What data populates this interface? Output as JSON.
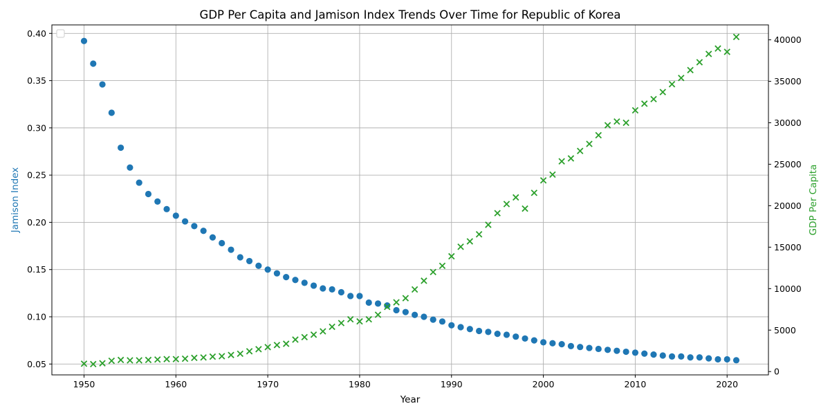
{
  "chart_data": {
    "type": "scatter",
    "title": "GDP Per Capita and Jamison Index Trends Over Time for Republic of Korea",
    "xlabel": "Year",
    "ylabel_left": "Jamison Index",
    "ylabel_right": "GDP Per Capita",
    "xlim": [
      1946.5,
      2024.5
    ],
    "ylim_left": [
      0.0385,
      0.409
    ],
    "ylim_right": [
      -400,
      41800
    ],
    "x_ticks": [
      1950,
      1960,
      1970,
      1980,
      1990,
      2000,
      2010,
      2020
    ],
    "y_left_ticks": [
      0.05,
      0.1,
      0.15,
      0.2,
      0.25,
      0.3,
      0.35,
      0.4
    ],
    "y_left_tick_labels": [
      "0.05",
      "0.10",
      "0.15",
      "0.20",
      "0.25",
      "0.30",
      "0.35",
      "0.40"
    ],
    "y_right_ticks": [
      0,
      5000,
      10000,
      15000,
      20000,
      25000,
      30000,
      35000,
      40000
    ],
    "grid": true,
    "legend": "top-left (empty)",
    "colors": {
      "jamison": "#1f77b4",
      "gdp": "#2ca02c"
    },
    "x": [
      1950,
      1951,
      1952,
      1953,
      1954,
      1955,
      1956,
      1957,
      1958,
      1959,
      1960,
      1961,
      1962,
      1963,
      1964,
      1965,
      1966,
      1967,
      1968,
      1969,
      1970,
      1971,
      1972,
      1973,
      1974,
      1975,
      1976,
      1977,
      1978,
      1979,
      1980,
      1981,
      1982,
      1983,
      1984,
      1985,
      1986,
      1987,
      1988,
      1989,
      1990,
      1991,
      1992,
      1993,
      1994,
      1995,
      1996,
      1997,
      1998,
      1999,
      2000,
      2001,
      2002,
      2003,
      2004,
      2005,
      2006,
      2007,
      2008,
      2009,
      2010,
      2011,
      2012,
      2013,
      2014,
      2015,
      2016,
      2017,
      2018,
      2019,
      2020,
      2021
    ],
    "series": [
      {
        "name": "Jamison Index",
        "axis": "left",
        "marker": "circle",
        "values": [
          0.392,
          0.368,
          0.346,
          0.316,
          0.279,
          0.258,
          0.242,
          0.23,
          0.222,
          0.214,
          0.207,
          0.201,
          0.196,
          0.191,
          0.184,
          0.178,
          0.171,
          0.163,
          0.159,
          0.154,
          0.15,
          0.146,
          0.142,
          0.139,
          0.136,
          0.133,
          0.13,
          0.129,
          0.126,
          0.122,
          0.122,
          0.115,
          0.114,
          0.112,
          0.107,
          0.105,
          0.102,
          0.1,
          0.097,
          0.095,
          0.091,
          0.089,
          0.087,
          0.085,
          0.084,
          0.082,
          0.081,
          0.079,
          0.077,
          0.075,
          0.073,
          0.072,
          0.071,
          0.069,
          0.068,
          0.067,
          0.066,
          0.065,
          0.064,
          0.063,
          0.062,
          0.061,
          0.06,
          0.059,
          0.058,
          0.058,
          0.057,
          0.057,
          0.056,
          0.055,
          0.055,
          0.054
        ]
      },
      {
        "name": "GDP Per Capita",
        "axis": "right",
        "marker": "x",
        "values": [
          950,
          900,
          1000,
          1300,
          1400,
          1350,
          1350,
          1400,
          1450,
          1500,
          1500,
          1550,
          1650,
          1700,
          1800,
          1850,
          2000,
          2150,
          2450,
          2700,
          2950,
          3200,
          3350,
          3850,
          4150,
          4450,
          4850,
          5400,
          5850,
          6300,
          6050,
          6300,
          6850,
          7800,
          8350,
          8850,
          9900,
          10950,
          12000,
          12750,
          13900,
          15050,
          15700,
          16550,
          17700,
          19100,
          20200,
          21000,
          19650,
          21550,
          23050,
          23750,
          25350,
          25700,
          26600,
          27450,
          28500,
          29700,
          30150,
          30000,
          31500,
          32300,
          32850,
          33700,
          34650,
          35400,
          36350,
          37300,
          38300,
          38950,
          38550,
          40350
        ]
      }
    ]
  }
}
